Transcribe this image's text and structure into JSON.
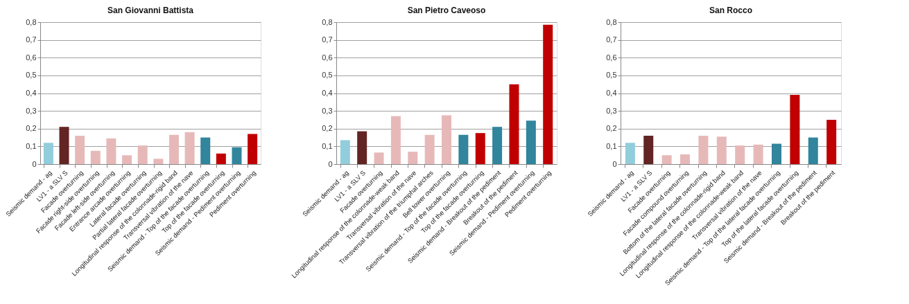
{
  "chart_data": [
    {
      "type": "bar",
      "title": "San Giovanni Battista",
      "categories": [
        "Seismic demand - ag",
        "LV1 - a SLV S",
        "Facade overturning",
        "Facade right-side overturning",
        "Facade left-side overturning",
        "Entrance arcade overturning",
        "Lateral facade overturning",
        "Partial lateral facade overturning",
        "Longitudinal response of the colonnade-rigid band",
        "Transversal vibration of the nave",
        "Seismic demand - Top of the facade overturning",
        "Top of the facade overturning",
        "Seismic demand - Pediment overturning",
        "Pediment overturning"
      ],
      "values": [
        0.12,
        0.21,
        0.16,
        0.075,
        0.145,
        0.05,
        0.105,
        0.03,
        0.165,
        0.18,
        0.15,
        0.06,
        0.095,
        0.17
      ],
      "colors": [
        "#92cddc",
        "#632523",
        "#e6b9b8",
        "#e6b9b8",
        "#e6b9b8",
        "#e6b9b8",
        "#e6b9b8",
        "#e6b9b8",
        "#e6b9b8",
        "#e6b9b8",
        "#31859c",
        "#c00000",
        "#31859c",
        "#c00000"
      ],
      "ylim": [
        0,
        0.8
      ],
      "yticks": [
        0,
        {
          "value": 0.1,
          "label": "0,1"
        },
        {
          "value": 0.2,
          "label": "0,2"
        },
        {
          "value": 0.3,
          "label": "0,3"
        },
        {
          "value": 0.4,
          "label": "0,4"
        },
        {
          "value": 0.5,
          "label": "0,5"
        },
        {
          "value": 0.6,
          "label": "0,6"
        },
        {
          "value": 0.7,
          "label": "0,7"
        },
        {
          "value": 0.8,
          "label": "0,8"
        }
      ],
      "grid": "y"
    },
    {
      "type": "bar",
      "title": "San Pietro Caveoso",
      "categories": [
        "Seismic demand - ag",
        "LV1 - a SLV S",
        "Facade overturning",
        "Longitudinal response of the colonnade-weak band",
        "Transversal vibration of the nave",
        "Transversal vibration of the triumphal arches",
        "Bell tower overturning",
        "Seismic demand - Top of the facade overturning",
        "Top of the facade overturning",
        "Seismic demand - Breakout of the pediment",
        "Breakout of the pediment",
        "Seismic demand - Pediment overturning",
        "Pediment overturning"
      ],
      "values": [
        0.135,
        0.185,
        0.065,
        0.27,
        0.07,
        0.165,
        0.275,
        0.165,
        0.175,
        0.21,
        0.45,
        0.245,
        0.785
      ],
      "colors": [
        "#92cddc",
        "#632523",
        "#e6b9b8",
        "#e6b9b8",
        "#e6b9b8",
        "#e6b9b8",
        "#e6b9b8",
        "#31859c",
        "#c00000",
        "#31859c",
        "#c00000",
        "#31859c",
        "#c00000"
      ],
      "ylim": [
        0,
        0.8
      ],
      "yticks": [
        0,
        {
          "value": 0.1,
          "label": "0,1"
        },
        {
          "value": 0.2,
          "label": "0,2"
        },
        {
          "value": 0.3,
          "label": "0,3"
        },
        {
          "value": 0.4,
          "label": "0,4"
        },
        {
          "value": 0.5,
          "label": "0,5"
        },
        {
          "value": 0.6,
          "label": "0,6"
        },
        {
          "value": 0.7,
          "label": "0,7"
        },
        {
          "value": 0.8,
          "label": "0,8"
        }
      ],
      "grid": "y"
    },
    {
      "type": "bar",
      "title": "San Rocco",
      "categories": [
        "Seismic demand - ag",
        "LV1 - a SLV S",
        "Facade overturning",
        "Facade compound overturning",
        "Bottom of the lateral facade overturning",
        "Longitudinal response of the colonnade-rigid band",
        "Longitudinal response of the colonnade-weak band",
        "Transversal vibration of the nave",
        "Seismic demand - Top of the lateral facade overturning",
        "Top of the lateral facade overturning",
        "Seismic demand - Breakout of the pediment",
        "Breakout of the pediment"
      ],
      "values": [
        0.12,
        0.16,
        0.05,
        0.055,
        0.16,
        0.155,
        0.105,
        0.11,
        0.115,
        0.39,
        0.15,
        0.25
      ],
      "colors": [
        "#92cddc",
        "#632523",
        "#e6b9b8",
        "#e6b9b8",
        "#e6b9b8",
        "#e6b9b8",
        "#e6b9b8",
        "#e6b9b8",
        "#31859c",
        "#c00000",
        "#31859c",
        "#c00000"
      ],
      "ylim": [
        0,
        0.8
      ],
      "yticks": [
        0,
        {
          "value": 0.1,
          "label": "0,1"
        },
        {
          "value": 0.2,
          "label": "0,2"
        },
        {
          "value": 0.3,
          "label": "0,3"
        },
        {
          "value": 0.4,
          "label": "0,4"
        },
        {
          "value": 0.5,
          "label": "0,5"
        },
        {
          "value": 0.6,
          "label": "0,6"
        },
        {
          "value": 0.7,
          "label": "0,7"
        },
        {
          "value": 0.8,
          "label": "0,8"
        }
      ],
      "grid": "y"
    }
  ]
}
